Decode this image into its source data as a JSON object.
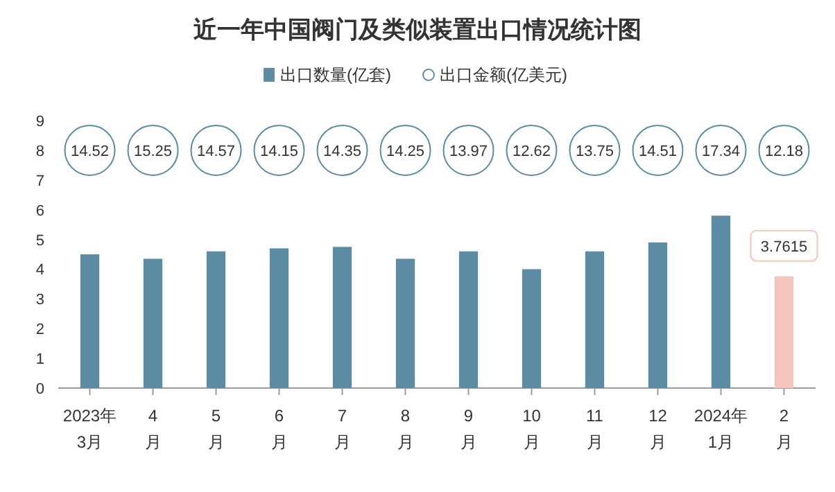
{
  "chart_data": [
    {
      "type": "bar",
      "title": "近一年中国阀门及类似装置出口情况统计图",
      "categories": [
        "2023年\n3月",
        "4\n月",
        "5\n月",
        "6\n月",
        "7\n月",
        "8\n月",
        "9\n月",
        "10\n月",
        "11\n月",
        "12\n月",
        "2024年\n1月",
        "2\n月"
      ],
      "series": [
        {
          "name": "出口数量(亿套)",
          "color": "#5b8ca3",
          "colors": [
            "#5b8ca3",
            "#5b8ca3",
            "#5b8ca3",
            "#5b8ca3",
            "#5b8ca3",
            "#5b8ca3",
            "#5b8ca3",
            "#5b8ca3",
            "#5b8ca3",
            "#5b8ca3",
            "#5b8ca3",
            "#f5c4bb"
          ],
          "values": [
            4.5,
            4.35,
            4.6,
            4.7,
            4.75,
            4.35,
            4.6,
            4.0,
            4.6,
            4.9,
            5.8,
            3.7615
          ],
          "value_labels": [
            null,
            null,
            null,
            null,
            null,
            null,
            null,
            null,
            null,
            null,
            null,
            "3.7615"
          ]
        }
      ],
      "ylim": [
        0,
        9
      ],
      "yticks": [
        0,
        1,
        2,
        3,
        4,
        5,
        6,
        7,
        8,
        9
      ],
      "legend": "top"
    },
    {
      "type": "other",
      "series": [
        {
          "name": "出口金额(亿美元)",
          "color": "#5b8ca3",
          "values": [
            14.52,
            15.25,
            14.57,
            14.15,
            14.35,
            14.25,
            13.97,
            12.62,
            13.75,
            14.51,
            17.34,
            12.18
          ]
        }
      ],
      "data_labels": true
    }
  ]
}
